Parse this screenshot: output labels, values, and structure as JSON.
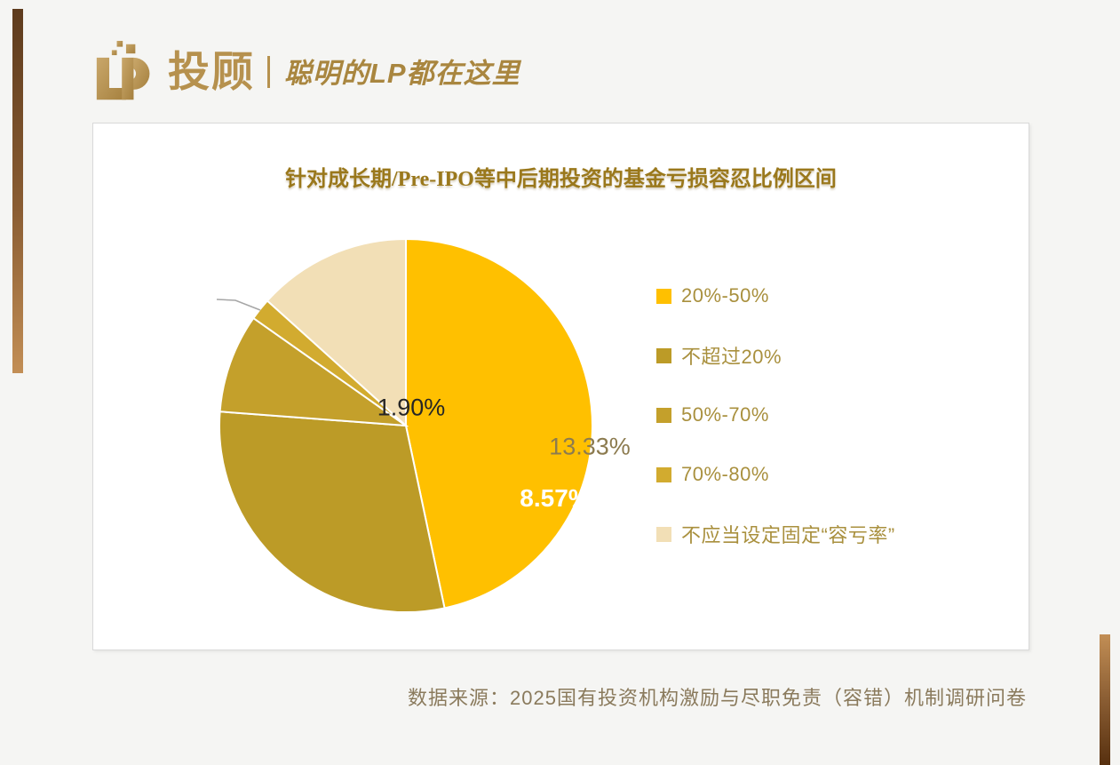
{
  "brand": {
    "mark": "LP",
    "name": "投顾",
    "tagline": "聪明的LP都在这里",
    "gold": "#B6914E"
  },
  "decor": {
    "left_bar_top": "#5E3B1D",
    "left_bar_bottom": "#C28E55",
    "right_bar_top": "#C28E55",
    "right_bar_bottom": "#57300F"
  },
  "chart_data": {
    "type": "pie",
    "title": "针对成长期/Pre-IPO等中后期投资的基金亏损容忍比例区间",
    "values_unit": "percent",
    "legend_position": "right",
    "start_angle_deg": 0,
    "direction": "clockwise",
    "slice_border_color": "#FFFFFF",
    "leader_line_color": "#A6A6A6",
    "slices": [
      {
        "name": "20%-50%",
        "value": 46.67,
        "label": "46.67%",
        "color": "#FFC000",
        "label_color": "#FFFFFF"
      },
      {
        "name": "不超过20%",
        "value": 29.52,
        "label": "29.52%",
        "color": "#BC9B27",
        "label_color": "#FFFFFF"
      },
      {
        "name": "50%-70%",
        "value": 8.57,
        "label": "8.57%",
        "color": "#C4A02B",
        "label_color": "#FFFFFF"
      },
      {
        "name": "70%-80%",
        "value": 1.9,
        "label": "1.90%",
        "color": "#D2AB2F",
        "label_color": "#262626"
      },
      {
        "name": "不应当设定固定“容亏率”",
        "value": 13.33,
        "label": "13.33%",
        "color": "#F2DFB6",
        "label_color": "#8C7B4F"
      }
    ]
  },
  "footer": {
    "source": "数据来源：2025国有投资机构激励与尽职免责（容错）机制调研问卷"
  }
}
